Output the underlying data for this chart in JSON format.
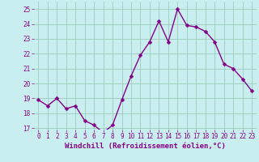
{
  "x": [
    0,
    1,
    2,
    3,
    4,
    5,
    6,
    7,
    8,
    9,
    10,
    11,
    12,
    13,
    14,
    15,
    16,
    17,
    18,
    19,
    20,
    21,
    22,
    23
  ],
  "y": [
    18.9,
    18.5,
    19.0,
    18.3,
    18.5,
    17.5,
    17.2,
    16.7,
    17.2,
    18.9,
    20.5,
    21.9,
    22.8,
    24.2,
    22.8,
    25.0,
    23.9,
    23.8,
    23.5,
    22.8,
    21.3,
    21.0,
    20.3,
    19.5
  ],
  "xlim": [
    -0.5,
    23.5
  ],
  "ylim": [
    16.9,
    25.5
  ],
  "yticks": [
    17,
    18,
    19,
    20,
    21,
    22,
    23,
    24,
    25
  ],
  "xticks": [
    0,
    1,
    2,
    3,
    4,
    5,
    6,
    7,
    8,
    9,
    10,
    11,
    12,
    13,
    14,
    15,
    16,
    17,
    18,
    19,
    20,
    21,
    22,
    23
  ],
  "xlabel": "Windchill (Refroidissement éolien,°C)",
  "line_color": "#880088",
  "bg_color": "#c8eef0",
  "grid_color": "#99ccbb",
  "marker": "D",
  "marker_size": 2.5,
  "line_width": 1.0,
  "xlabel_fontsize": 6.5,
  "tick_fontsize": 5.5
}
